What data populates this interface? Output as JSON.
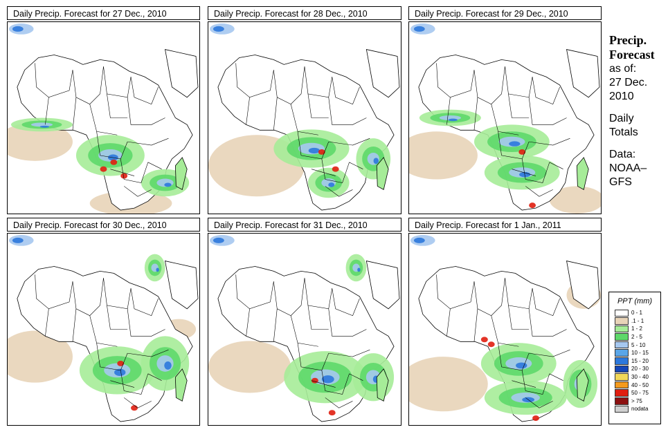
{
  "panels": [
    {
      "title": "Daily Precip. Forecast for  27 Dec., 2010"
    },
    {
      "title": "Daily Precip. Forecast for  28 Dec., 2010"
    },
    {
      "title": "Daily Precip. Forecast for  29 Dec., 2010"
    },
    {
      "title": "Daily Precip. Forecast for  30 Dec., 2010"
    },
    {
      "title": "Daily Precip. Forecast for  31 Dec., 2010"
    },
    {
      "title": "Daily Precip. Forecast for  1 Jan., 2011"
    }
  ],
  "sidebar": {
    "title_line1": "Precip.",
    "title_line2": "Forecast",
    "asof_line1": "as of:",
    "asof_line2": "27 Dec.",
    "asof_line3": "2010",
    "totals_line1": "Daily",
    "totals_line2": "Totals",
    "data_line1": "Data:",
    "data_line2": "NOAA–",
    "data_line3": "GFS"
  },
  "legend": {
    "title": "PPT (mm)",
    "items": [
      {
        "label": "0 - 1",
        "color": "#ffffff"
      },
      {
        "label": ".1 - 1",
        "color": "#e8d4b8"
      },
      {
        "label": "1 - 2",
        "color": "#a6ec98"
      },
      {
        "label": "2 - 5",
        "color": "#5ed86a"
      },
      {
        "label": "5 - 10",
        "color": "#a6c8f0"
      },
      {
        "label": "10 - 15",
        "color": "#5aa6e8"
      },
      {
        "label": "15 - 20",
        "color": "#2c78dc"
      },
      {
        "label": "20 - 30",
        "color": "#1446b8"
      },
      {
        "label": "30 - 40",
        "color": "#f2d85a"
      },
      {
        "label": "40 - 50",
        "color": "#f49a1e"
      },
      {
        "label": "50 - 75",
        "color": "#e01e10"
      },
      {
        "label": "> 75",
        "color": "#8c1010"
      },
      {
        "label": "nodata",
        "color": "#d0d0d0"
      }
    ]
  },
  "colors": {
    "sand": "#e8d4b8",
    "green_light": "#a6ec98",
    "green": "#5ed86a",
    "blue_light": "#a6c8f0",
    "blue": "#2c78dc",
    "red": "#e01e10",
    "border": "#000000"
  }
}
